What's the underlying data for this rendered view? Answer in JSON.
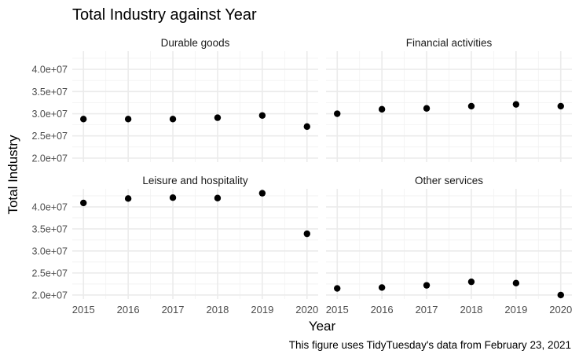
{
  "chart_data": {
    "type": "scatter",
    "title": "Total Industry against Year",
    "xlabel": "Year",
    "ylabel": "Total Industry",
    "caption": "This figure uses TidyTuesday's data from February 23, 2021",
    "x_ticks": [
      2015,
      2016,
      2017,
      2018,
      2019,
      2020
    ],
    "x_tick_labels": [
      "2015",
      "2016",
      "2017",
      "2018",
      "2019",
      "2020"
    ],
    "xlim": [
      2014.75,
      2020.25
    ],
    "y_ticks": [
      20000000,
      25000000,
      30000000,
      35000000,
      40000000
    ],
    "y_tick_labels": [
      "2.0e+07",
      "2.5e+07",
      "3.0e+07",
      "3.5e+07",
      "4.0e+07"
    ],
    "ylim": [
      19100000,
      44100000
    ],
    "grid": true,
    "facets": [
      {
        "name": "Durable goods",
        "x": [
          2015,
          2016,
          2017,
          2018,
          2019,
          2020
        ],
        "y": [
          28800000,
          28800000,
          28800000,
          29100000,
          29600000,
          27100000
        ]
      },
      {
        "name": "Financial activities",
        "x": [
          2015,
          2016,
          2017,
          2018,
          2019,
          2020
        ],
        "y": [
          30000000,
          31000000,
          31200000,
          31700000,
          32100000,
          31700000
        ]
      },
      {
        "name": "Leisure and hospitality",
        "x": [
          2015,
          2016,
          2017,
          2018,
          2019,
          2020
        ],
        "y": [
          40900000,
          41900000,
          42100000,
          42000000,
          43100000,
          33900000
        ]
      },
      {
        "name": "Other services",
        "x": [
          2015,
          2016,
          2017,
          2018,
          2019,
          2020
        ],
        "y": [
          21500000,
          21700000,
          22200000,
          23000000,
          22700000,
          20000000
        ]
      }
    ]
  }
}
